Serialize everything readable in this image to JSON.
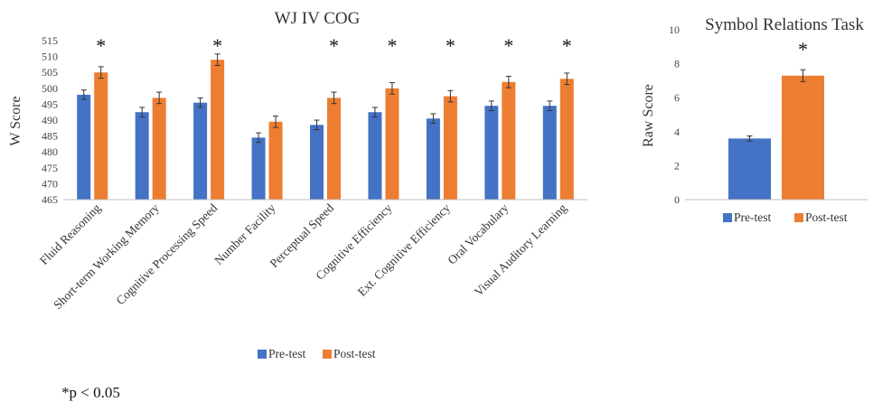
{
  "colors": {
    "pre": "#4472C4",
    "post": "#ED7D31",
    "axis": "#bfbfbf",
    "error": "#333333"
  },
  "footnote": "*p < 0.05",
  "chart_data": [
    {
      "type": "bar",
      "title": "WJ IV COG",
      "ylabel": "W Score",
      "xlabel": "",
      "ylim": [
        465,
        515
      ],
      "ytick_step": 5,
      "grid": false,
      "legend": "bottom",
      "categories": [
        "Fluid Reasoning",
        "Short-term Working Memory",
        "Cognitive Processing Speed",
        "Number Facility",
        "Perceptual Speed",
        "Cognitive Efficiency",
        "Ext. Cognitive Efficiency",
        "Oral Vocabulary",
        "Visual Auditory Learning"
      ],
      "series": [
        {
          "name": "Pre-test",
          "values": [
            498,
            492.5,
            495.5,
            484.5,
            488.5,
            492.5,
            490.5,
            494.5,
            494.5
          ],
          "errors": [
            1.5,
            1.5,
            1.5,
            1.5,
            1.5,
            1.5,
            1.5,
            1.5,
            1.5
          ]
        },
        {
          "name": "Post-test",
          "values": [
            505,
            497,
            509,
            489.5,
            497,
            500,
            497.5,
            502,
            503
          ],
          "errors": [
            1.8,
            1.8,
            1.8,
            1.8,
            1.8,
            1.8,
            1.8,
            1.8,
            1.8
          ]
        }
      ],
      "significant": [
        true,
        false,
        true,
        false,
        true,
        true,
        true,
        true,
        true
      ],
      "significance_marker": "*"
    },
    {
      "type": "bar",
      "title": "Symbol Relations Task",
      "ylabel": "Raw Score",
      "xlabel": "",
      "ylim": [
        0,
        10
      ],
      "ytick_step": 2,
      "grid": false,
      "legend": "bottom",
      "categories": [
        ""
      ],
      "series": [
        {
          "name": "Pre-test",
          "values": [
            3.6
          ],
          "errors": [
            0.15
          ]
        },
        {
          "name": "Post-test",
          "values": [
            7.3
          ],
          "errors": [
            0.35
          ]
        }
      ],
      "significant": [
        true
      ],
      "significance_marker": "*"
    }
  ]
}
